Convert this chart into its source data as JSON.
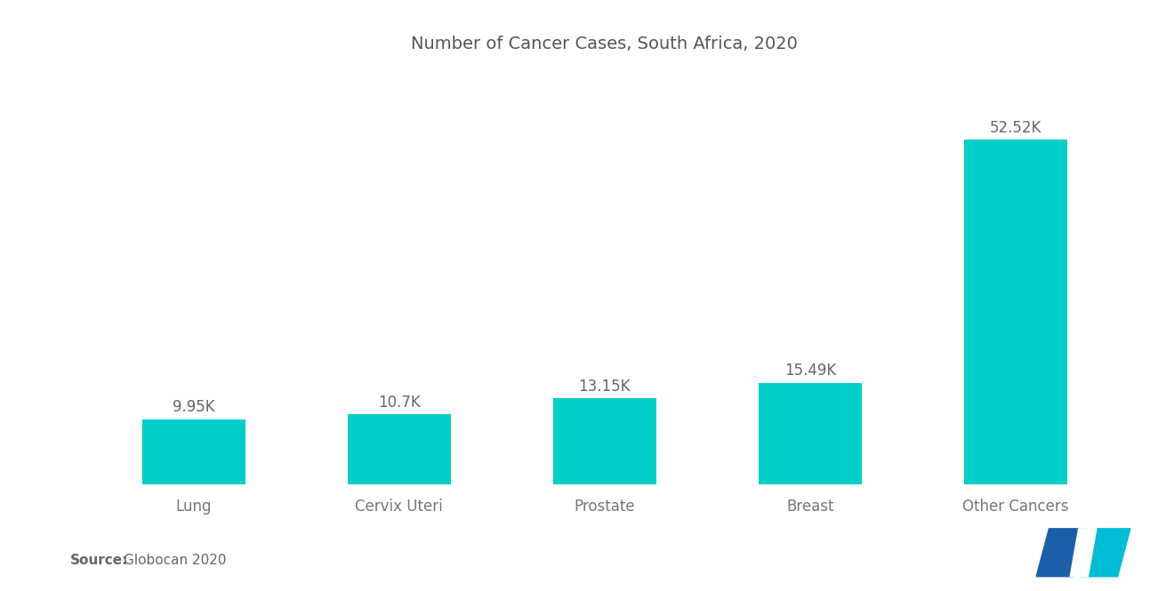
{
  "title": "Number of Cancer Cases, South Africa, 2020",
  "categories": [
    "Lung",
    "Cervix Uteri",
    "Prostate",
    "Breast",
    "Other Cancers"
  ],
  "values": [
    9950,
    10700,
    13150,
    15490,
    52520
  ],
  "labels": [
    "9.95K",
    "10.7K",
    "13.15K",
    "15.49K",
    "52.52K"
  ],
  "bar_color": "#00CEC9",
  "background_color": "#ffffff",
  "title_fontsize": 14,
  "label_fontsize": 12,
  "tick_fontsize": 12,
  "source_bold": "Source:",
  "source_text": "  Globocan 2020",
  "source_fontsize": 11,
  "title_color": "#555555",
  "label_color": "#666666",
  "tick_color": "#777777",
  "source_color": "#666666",
  "ylim": [
    0,
    63000
  ],
  "bar_width": 0.5,
  "logo_color_left": "#1B5FA8",
  "logo_color_right": "#00BCD4"
}
